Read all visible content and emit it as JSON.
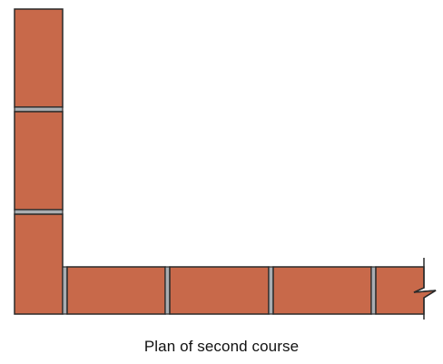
{
  "caption": "Plan of second course",
  "colors": {
    "brick": "#C8694A",
    "mortar": "#A9ADB1",
    "outline": "#2A2A2A",
    "background": "#FFFFFF"
  },
  "wall": {
    "vertical_leg_bricks": 3,
    "horizontal_leg_bricks": 4,
    "break_symbol": "zigzag-break-line"
  }
}
